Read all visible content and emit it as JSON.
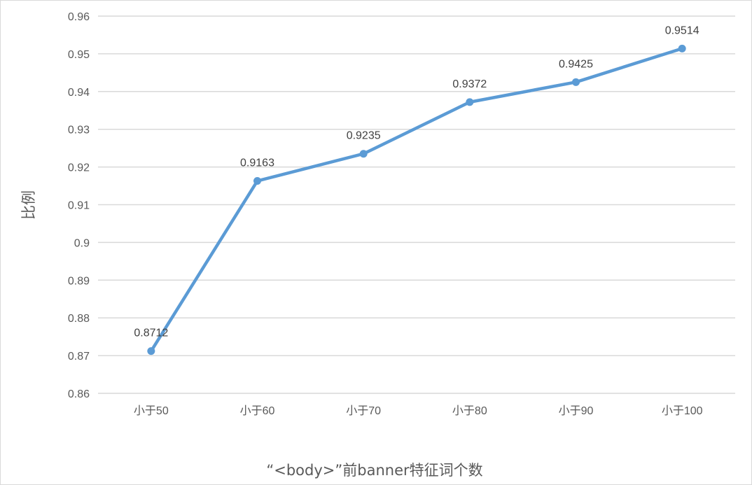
{
  "chart_data": {
    "type": "line",
    "categories": [
      "小于50",
      "小于60",
      "小于70",
      "小于80",
      "小于90",
      "小于100"
    ],
    "series": [
      {
        "values": [
          0.8712,
          0.9163,
          0.9235,
          0.9372,
          0.9425,
          0.9514
        ]
      }
    ],
    "data_labels": [
      "0.8712",
      "0.9163",
      "0.9235",
      "0.9372",
      "0.9425",
      "0.9514"
    ],
    "y_ticks": [
      "0.86",
      "0.87",
      "0.88",
      "0.89",
      "0.9",
      "0.91",
      "0.92",
      "0.93",
      "0.94",
      "0.95",
      "0.96"
    ],
    "ylim": [
      0.86,
      0.96
    ],
    "xlabel": "“<body>”前banner特征词个数",
    "ylabel": "比例",
    "grid": true,
    "colors": {
      "line": "#5b9bd5",
      "grid": "#d9d9d9"
    }
  }
}
